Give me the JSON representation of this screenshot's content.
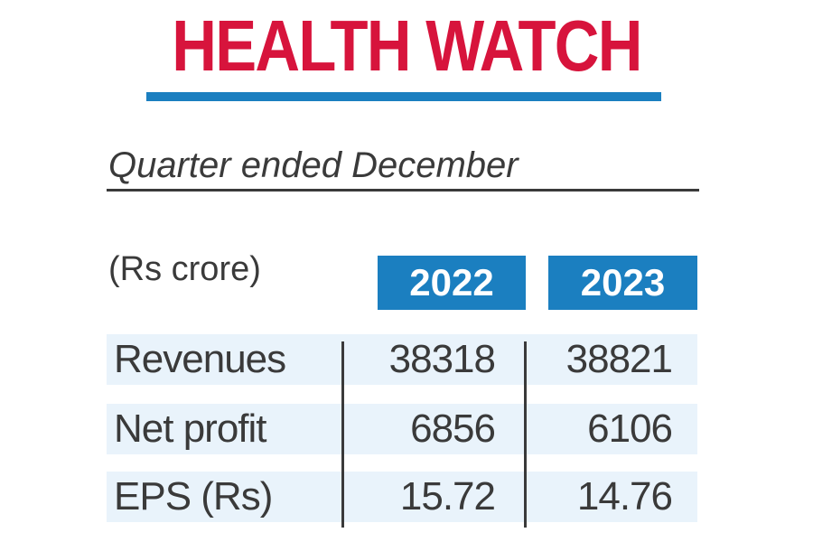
{
  "chart_data": {
    "type": "table",
    "title": "HEALTH WATCH",
    "subtitle": "Quarter ended December",
    "unit_label": "(Rs crore)",
    "columns": [
      "2022",
      "2023"
    ],
    "rows": [
      {
        "label": "Revenues",
        "values": [
          "38318",
          "38821"
        ]
      },
      {
        "label": "Net profit",
        "values": [
          "6856",
          "6106"
        ]
      },
      {
        "label": "EPS (Rs)",
        "values": [
          "15.72",
          "14.76"
        ]
      }
    ],
    "colors": {
      "title": "#d7143c",
      "accent": "#1b7fc0",
      "row_shade": "#e9f3fb",
      "text": "#3a3a3a"
    }
  }
}
